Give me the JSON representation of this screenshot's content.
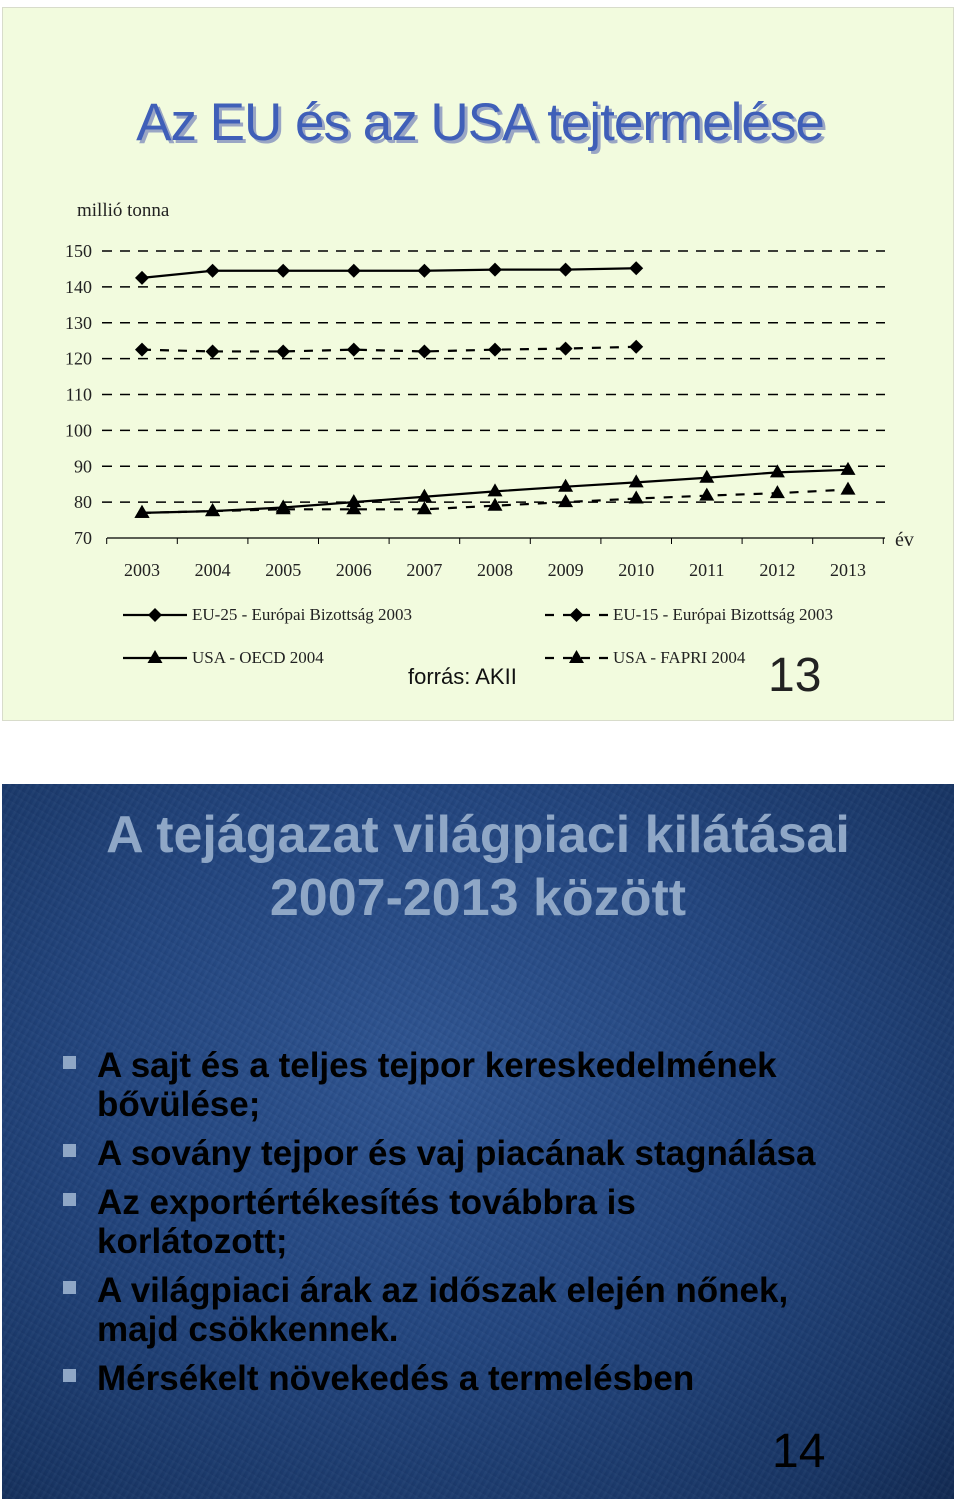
{
  "slide1": {
    "title": "Az EU és az USA tejtermelése",
    "y_axis_title": "millió tonna",
    "x_axis_title": "év",
    "source": "forrás: AKII",
    "page_number": "13",
    "chart_data": {
      "type": "line",
      "x": [
        "2003",
        "2004",
        "2005",
        "2006",
        "2007",
        "2008",
        "2009",
        "2010",
        "2011",
        "2012",
        "2013"
      ],
      "yticks": [
        "150",
        "140",
        "130",
        "120",
        "110",
        "100",
        "90",
        "80",
        "70"
      ],
      "ylim": [
        70,
        150
      ],
      "grid": true,
      "legend_position": "bottom",
      "series": [
        {
          "name": "EU-25 - Európai Bizottság 2003",
          "marker": "diamond",
          "line": "solid",
          "values": [
            142.5,
            144.5,
            144.5,
            144.5,
            144.5,
            144.8,
            144.8,
            145.2,
            null,
            null,
            null
          ]
        },
        {
          "name": "EU-15 - Európai Bizottság 2003",
          "marker": "diamond",
          "line": "dashed",
          "values": [
            122.5,
            122,
            122,
            122.5,
            122,
            122.5,
            122.8,
            123.3,
            null,
            null,
            null
          ]
        },
        {
          "name": "USA - OECD 2004",
          "marker": "triangle",
          "line": "solid",
          "values": [
            77,
            77.5,
            78.5,
            80,
            81.5,
            83,
            84.3,
            85.5,
            86.8,
            88.3,
            89
          ]
        },
        {
          "name": "USA - FAPRI 2004",
          "marker": "triangle",
          "line": "dashed",
          "values": [
            77,
            77.5,
            78,
            78,
            78,
            79,
            80,
            81,
            81.8,
            82.5,
            83.5
          ]
        }
      ]
    }
  },
  "slide2": {
    "title_line1": "A tejágazat világpiaci kilátásai",
    "title_line2": "2007-2013 között",
    "bullets": [
      {
        "line1": "A sajt és a teljes tejpor kereskedelmének",
        "line2": "bővülése;"
      },
      {
        "line1": "A sovány tejpor és vaj piacának stagnálása",
        "line2": ""
      },
      {
        "line1": "Az exportértékesítés továbbra is",
        "line2": "korlátozott;"
      },
      {
        "line1": "A világpiaci árak az időszak elején nőnek,",
        "line2": "majd csökkennek."
      },
      {
        "line1": "Mérsékelt növekedés a termelésben",
        "line2": ""
      }
    ],
    "page_number": "14",
    "colors": {
      "bullet": "#8fa7c6",
      "title": "#8fa7c6",
      "background": "#23467f"
    }
  }
}
